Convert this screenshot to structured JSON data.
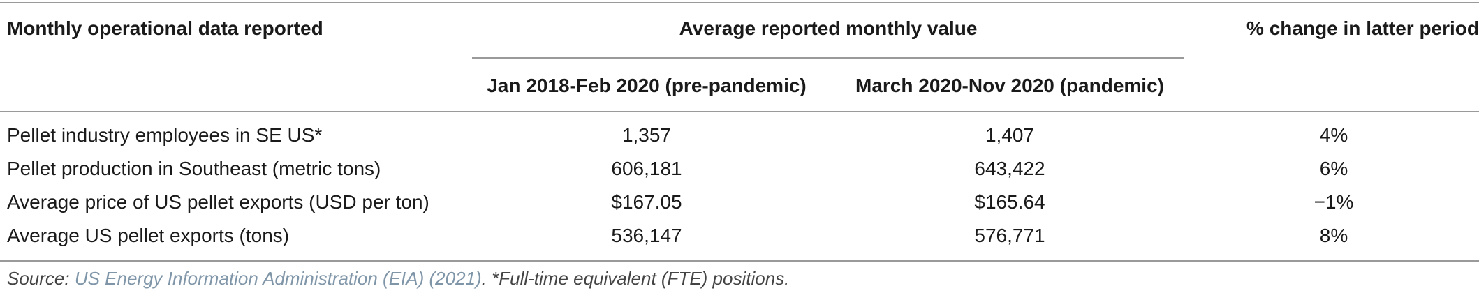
{
  "table": {
    "header": {
      "col1": "Monthly operational data reported",
      "group": "Average reported monthly value",
      "col4": "% change in latter period",
      "col2": "Jan 2018-Feb 2020 (pre-pandemic)",
      "col3": "March 2020-Nov 2020 (pandemic)"
    },
    "rows": [
      {
        "label": "Pellet industry employees in SE US*",
        "pre": "1,357",
        "pandemic": "1,407",
        "change": "4%"
      },
      {
        "label": "Pellet production in Southeast (metric tons)",
        "pre": "606,181",
        "pandemic": "643,422",
        "change": "6%"
      },
      {
        "label": "Average price of US pellet exports (USD per ton)",
        "pre": "$167.05",
        "pandemic": "$165.64",
        "change": "−1%"
      },
      {
        "label": "Average US pellet exports (tons)",
        "pre": "536,147",
        "pandemic": "576,771",
        "change": "8%"
      }
    ]
  },
  "footnote": {
    "prefix": "Source: ",
    "source_link": "US Energy Information Administration (EIA) (2021)",
    "suffix": ". *Full-time equivalent (FTE) positions."
  },
  "colors": {
    "rule": "#9a9a9a",
    "text": "#1a1a1a",
    "link": "#7f95a8"
  }
}
